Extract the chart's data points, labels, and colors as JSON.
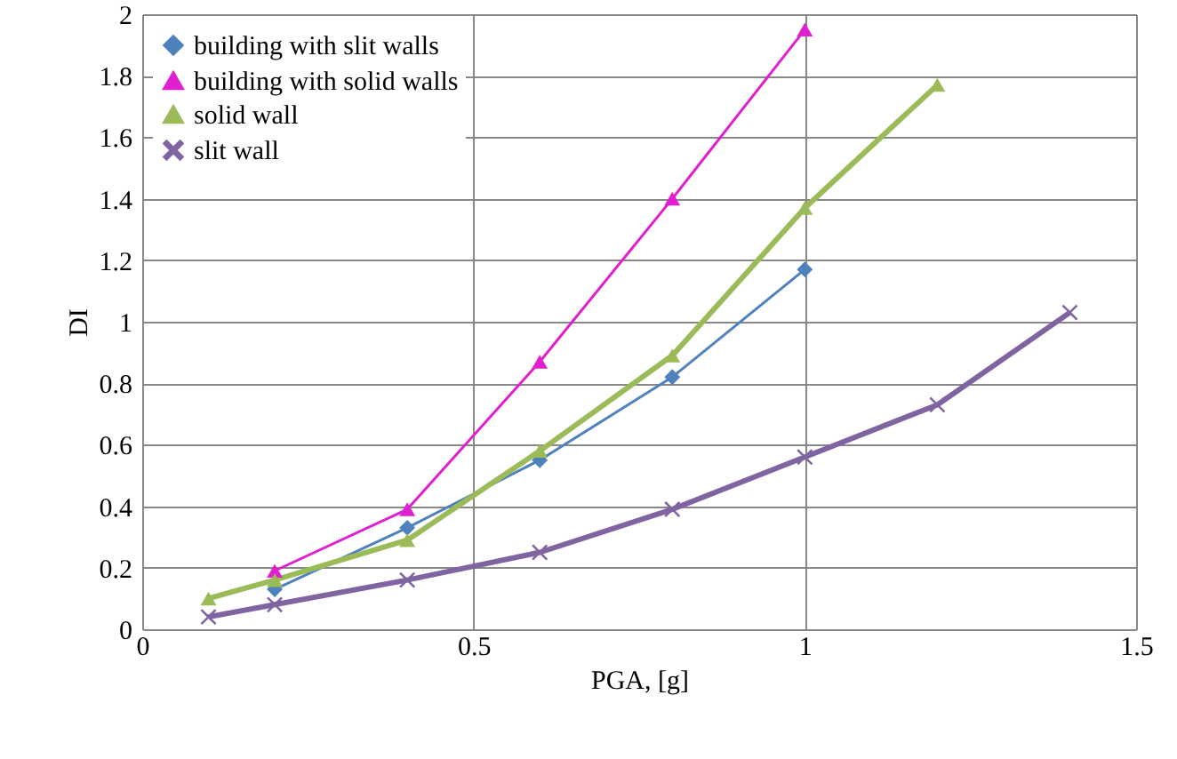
{
  "chart_data": {
    "type": "line",
    "xlabel": "PGA, [g]",
    "ylabel": "DI",
    "xlim": [
      0,
      1.5
    ],
    "xticks": [
      0,
      0.5,
      1,
      1.5
    ],
    "ylim": [
      0,
      2
    ],
    "yticks": [
      0,
      0.2,
      0.4,
      0.6,
      0.8,
      1,
      1.2,
      1.4,
      1.6,
      1.8,
      2
    ],
    "grid": true,
    "legend": "top left",
    "series": [
      {
        "name": "building with slit walls",
        "color": "#4f81bd",
        "marker": "diamond",
        "x": [
          0.2,
          0.4,
          0.6,
          0.8,
          1.0
        ],
        "values": [
          0.13,
          0.33,
          0.55,
          0.82,
          1.17
        ]
      },
      {
        "name": "building with solid walls",
        "color": "#e020d0",
        "marker": "triangle",
        "x": [
          0.2,
          0.4,
          0.6,
          0.8,
          1.0
        ],
        "values": [
          0.19,
          0.39,
          0.87,
          1.4,
          1.95
        ]
      },
      {
        "name": "solid wall",
        "color": "#9bbb59",
        "marker": "triangle",
        "x": [
          0.1,
          0.2,
          0.4,
          0.6,
          0.8,
          1.0,
          1.2
        ],
        "values": [
          0.1,
          0.16,
          0.29,
          0.58,
          0.89,
          1.37,
          1.77
        ]
      },
      {
        "name": "slit wall",
        "color": "#8064a2",
        "marker": "cross",
        "x": [
          0.1,
          0.2,
          0.4,
          0.6,
          0.8,
          1.0,
          1.2,
          1.4
        ],
        "values": [
          0.04,
          0.08,
          0.16,
          0.25,
          0.39,
          0.56,
          0.73,
          1.03
        ]
      }
    ]
  }
}
